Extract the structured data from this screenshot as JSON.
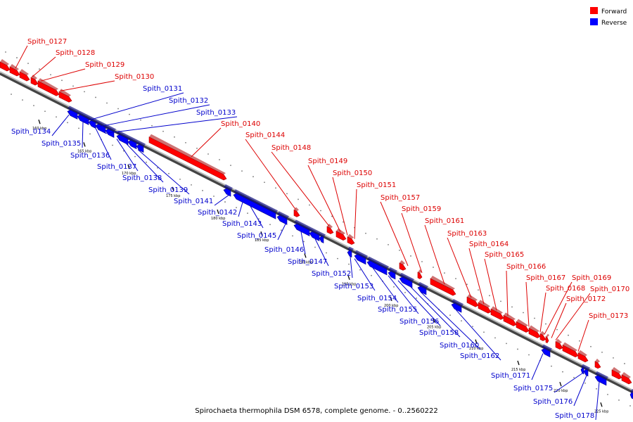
{
  "legend": [
    {
      "label": "Forward",
      "color": "#ff0000"
    },
    {
      "label": "Reverse",
      "color": "#0000ff"
    }
  ],
  "caption": "Spirochaeta thermophila DSM 6578, complete genome. - 0..2560222",
  "axis_ticks": [
    "160 kbp",
    "165 kbp",
    "170 kbp",
    "175 kbp",
    "180 kbp",
    "185 kbp",
    "190 kbp",
    "195 kbp",
    "200 kbp",
    "205 kbp",
    "210 kbp",
    "215 kbp",
    "220 kbp",
    "225 kbp"
  ],
  "forward_genes": [
    "Spith_0127",
    "Spith_0128",
    "Spith_0129",
    "Spith_0130",
    "Spith_0140",
    "Spith_0144",
    "Spith_0148",
    "Spith_0149",
    "Spith_0150",
    "Spith_0151",
    "Spith_0157",
    "Spith_0159",
    "Spith_0161",
    "Spith_0163",
    "Spith_0164",
    "Spith_0165",
    "Spith_0166",
    "Spith_0167",
    "Spith_0168",
    "Spith_0169",
    "Spith_0170",
    "Spith_0172",
    "Spith_0173"
  ],
  "reverse_genes": [
    "Spith_0131",
    "Spith_0132",
    "Spith_0133",
    "Spith_0134",
    "Spith_0135",
    "Spith_0136",
    "Spith_0137",
    "Spith_0138",
    "Spith_0139",
    "Spith_0141",
    "Spith_0142",
    "Spith_0143",
    "Spith_0145",
    "Spith_0146",
    "Spith_0147",
    "Spith_0152",
    "Spith_0153",
    "Spith_0154",
    "Spith_0155",
    "Spith_0156",
    "Spith_0158",
    "Spith_0160",
    "Spith_0162",
    "Spith_0171",
    "Spith_0175",
    "Spith_0176",
    "Spith_0178"
  ]
}
